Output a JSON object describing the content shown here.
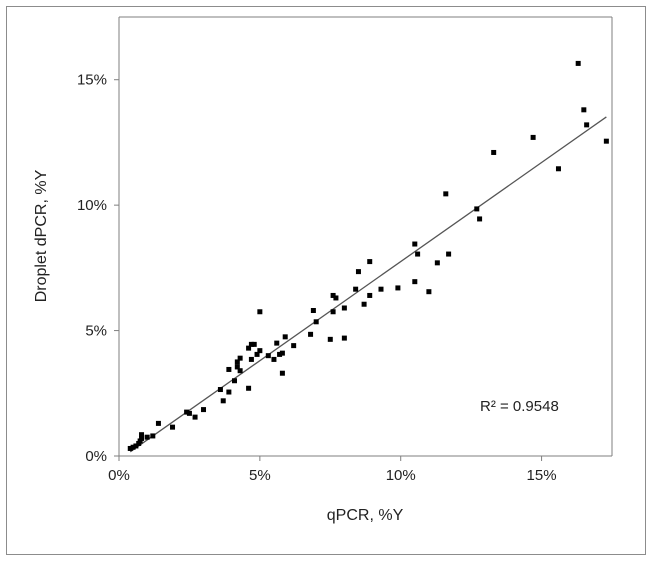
{
  "chart_data": {
    "type": "scatter",
    "title": "",
    "xlabel": "qPCR, %Y",
    "ylabel": "Droplet dPCR, %Y",
    "xlim": [
      0,
      17.5
    ],
    "ylim": [
      0,
      17.5
    ],
    "x_ticks": [
      0,
      5,
      10,
      15
    ],
    "x_tick_labels": [
      "0%",
      "5%",
      "10%",
      "15%"
    ],
    "y_ticks": [
      0,
      5,
      10,
      15
    ],
    "y_tick_labels": [
      "0%",
      "5%",
      "10%",
      "15%"
    ],
    "grid": false,
    "legend": "none",
    "marker_color": "#000000",
    "trendline": {
      "type": "linear",
      "slope": 0.79,
      "intercept": -0.15,
      "x_range": [
        0.4,
        17.3
      ],
      "color": "#555555"
    },
    "annotation": "R² = 0.9548",
    "points": [
      [
        0.4,
        0.3
      ],
      [
        0.5,
        0.35
      ],
      [
        0.6,
        0.4
      ],
      [
        0.7,
        0.5
      ],
      [
        0.75,
        0.6
      ],
      [
        0.8,
        0.7
      ],
      [
        0.8,
        0.85
      ],
      [
        1.0,
        0.75
      ],
      [
        1.2,
        0.8
      ],
      [
        1.4,
        1.3
      ],
      [
        1.9,
        1.15
      ],
      [
        2.4,
        1.75
      ],
      [
        2.5,
        1.7
      ],
      [
        2.7,
        1.55
      ],
      [
        3.0,
        1.85
      ],
      [
        3.6,
        2.65
      ],
      [
        3.7,
        2.2
      ],
      [
        3.9,
        2.55
      ],
      [
        3.9,
        3.45
      ],
      [
        4.1,
        3.0
      ],
      [
        4.2,
        3.55
      ],
      [
        4.2,
        3.75
      ],
      [
        4.3,
        3.9
      ],
      [
        4.3,
        3.4
      ],
      [
        4.6,
        2.7
      ],
      [
        4.6,
        4.3
      ],
      [
        4.7,
        4.45
      ],
      [
        4.7,
        3.85
      ],
      [
        4.8,
        4.45
      ],
      [
        4.9,
        4.05
      ],
      [
        5.0,
        4.2
      ],
      [
        5.0,
        5.75
      ],
      [
        5.3,
        4.0
      ],
      [
        5.5,
        3.85
      ],
      [
        5.6,
        4.5
      ],
      [
        5.7,
        4.05
      ],
      [
        5.8,
        3.3
      ],
      [
        5.8,
        4.1
      ],
      [
        5.9,
        4.75
      ],
      [
        6.2,
        4.4
      ],
      [
        6.8,
        4.85
      ],
      [
        6.9,
        5.8
      ],
      [
        7.0,
        5.35
      ],
      [
        7.5,
        4.65
      ],
      [
        7.6,
        5.75
      ],
      [
        7.6,
        6.4
      ],
      [
        7.7,
        6.3
      ],
      [
        8.0,
        5.9
      ],
      [
        8.0,
        4.7
      ],
      [
        8.4,
        6.65
      ],
      [
        8.5,
        7.35
      ],
      [
        8.7,
        6.05
      ],
      [
        8.9,
        6.4
      ],
      [
        8.9,
        7.75
      ],
      [
        9.3,
        6.65
      ],
      [
        9.9,
        6.7
      ],
      [
        10.5,
        6.95
      ],
      [
        10.5,
        8.45
      ],
      [
        10.6,
        8.05
      ],
      [
        11.0,
        6.55
      ],
      [
        11.3,
        7.7
      ],
      [
        11.6,
        10.45
      ],
      [
        11.7,
        8.05
      ],
      [
        12.7,
        9.85
      ],
      [
        12.8,
        9.45
      ],
      [
        13.3,
        12.1
      ],
      [
        14.7,
        12.7
      ],
      [
        15.6,
        11.45
      ],
      [
        16.3,
        15.65
      ],
      [
        16.5,
        13.8
      ],
      [
        16.6,
        13.2
      ],
      [
        17.3,
        12.55
      ]
    ]
  }
}
